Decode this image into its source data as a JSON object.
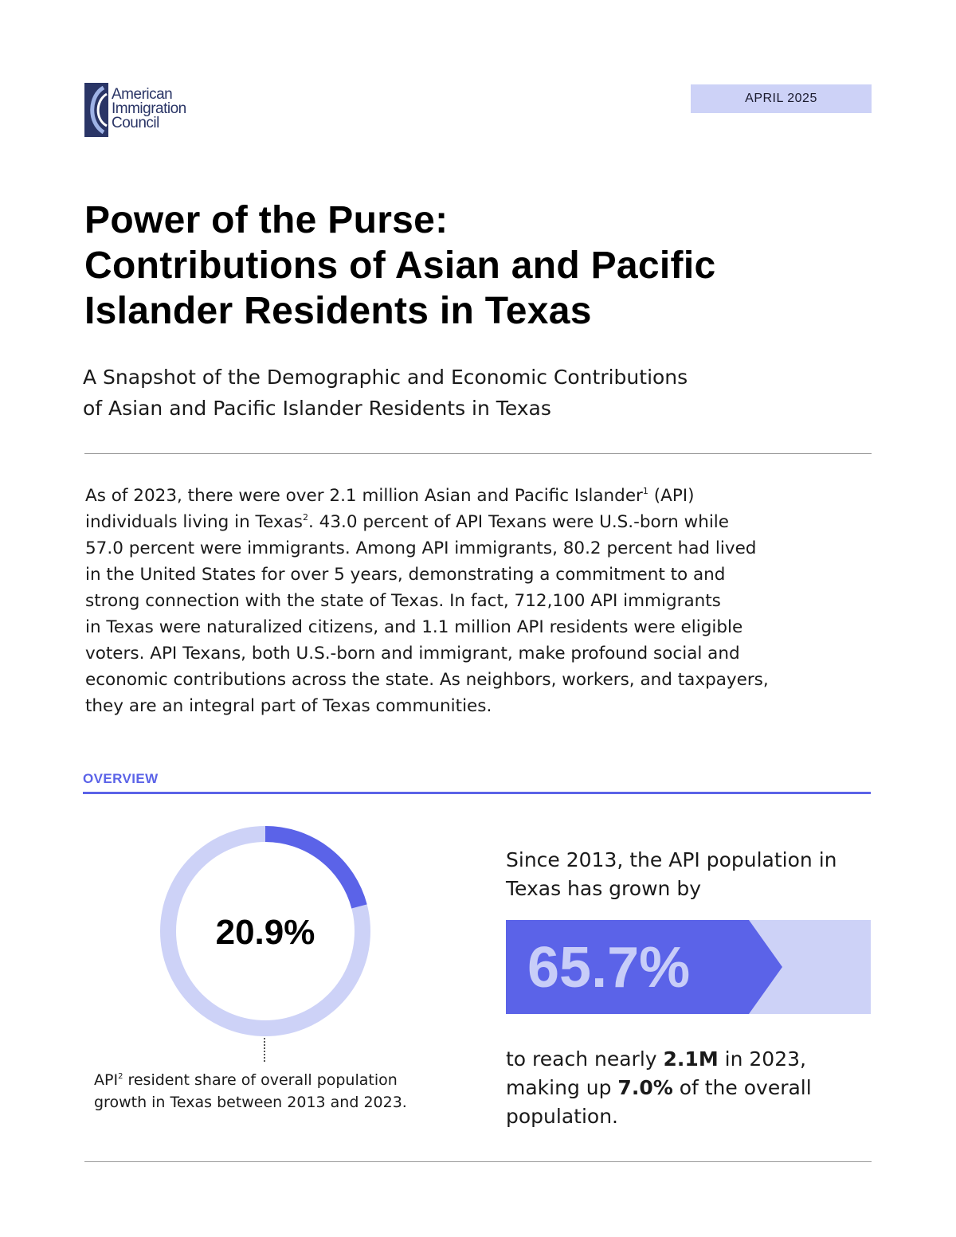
{
  "brand": {
    "logo_lines": [
      "American",
      "Immigration",
      "Council"
    ],
    "colors": {
      "navy": "#2a3566",
      "accent": "#5b63e8",
      "light_accent": "#cdd2f7"
    }
  },
  "date_badge": "APRIL 2025",
  "title_lines": [
    "Power of the Purse:",
    "Contributions of Asian and Pacific",
    "Islander Residents in Texas"
  ],
  "subtitle_lines": [
    "A Snapshot of the Demographic and Economic Contributions",
    "of Asian and Pacific Islander Residents in Texas"
  ],
  "intro": {
    "line1_a": "As of 2023, there were over 2.1 million Asian and Pacific Islander",
    "line1_sup": "1",
    "line1_b": " (API)",
    "line2_a": "individuals living in Texas",
    "line2_sup": "2",
    "line2_b": ". 43.0 percent of API Texans were U.S.-born while",
    "rest_lines": [
      "57.0 percent were immigrants. Among API immigrants, 80.2 percent had lived",
      "in the United States for over 5 years, demonstrating a commitment to and",
      "strong connection with the state of Texas. In fact, 712,100 API immigrants",
      "in Texas were naturalized citizens, and 1.1 million API residents were eligible",
      "voters. API Texans, both U.S.-born and immigrant, make profound social and",
      "economic contributions across the state. As neighbors, workers, and taxpayers,",
      "they are an integral part of Texas communities."
    ]
  },
  "overview": {
    "heading": "OVERVIEW",
    "donut": {
      "value_label": "20.9%",
      "share_percent": 20.9,
      "caption_a": "API",
      "caption_sup": "2",
      "caption_b": " resident share of overall population",
      "caption_line2": "growth in Texas between 2013 and 2023."
    },
    "growth": {
      "intro_lines": [
        "Since 2013, the API population in",
        "Texas has grown by"
      ],
      "value_label": "65.7%",
      "outro_a": "to reach nearly ",
      "outro_bold1": "2.1M",
      "outro_b": " in 2023,",
      "outro_c": "making up ",
      "outro_bold2": "7.0%",
      "outro_d": " of the overall",
      "outro_e": "population."
    }
  }
}
